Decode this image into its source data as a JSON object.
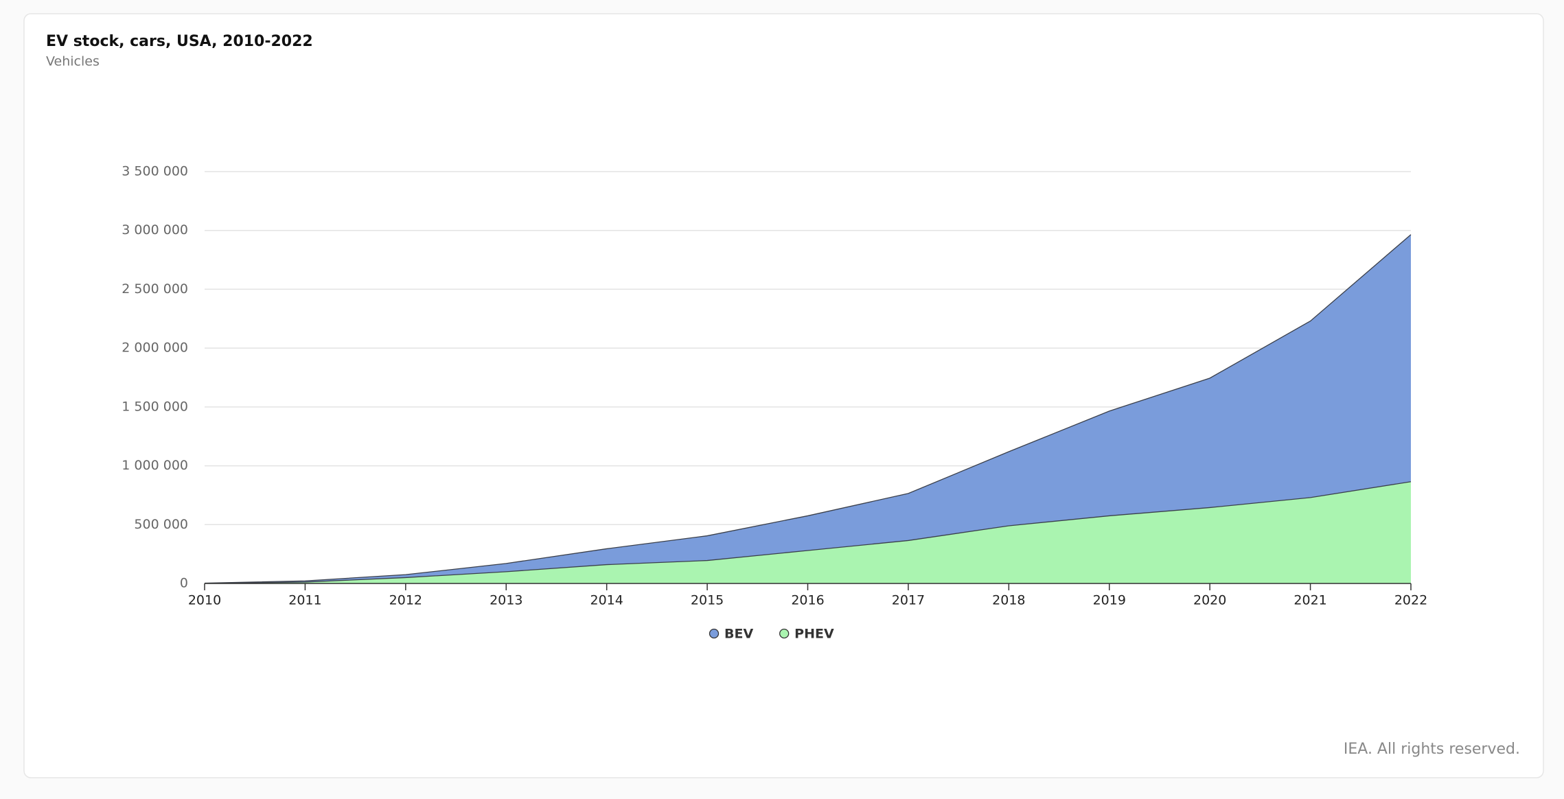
{
  "chart_data": {
    "type": "stacked-area",
    "title": "EV stock, cars, USA, 2010-2022",
    "subtitle": "Vehicles",
    "footer": "IEA. All rights reserved.",
    "x": [
      2010,
      2011,
      2012,
      2013,
      2014,
      2015,
      2016,
      2017,
      2018,
      2019,
      2020,
      2021,
      2022
    ],
    "xlim": [
      2010,
      2022
    ],
    "xticks": [
      2010,
      2011,
      2012,
      2013,
      2014,
      2015,
      2016,
      2017,
      2018,
      2019,
      2020,
      2021,
      2022
    ],
    "series": [
      {
        "name": "BEV",
        "color": "#7a9cdb",
        "values": [
          2000,
          10000,
          25000,
          70000,
          135000,
          210000,
          295000,
          400000,
          630000,
          890000,
          1100000,
          1500000,
          2100000
        ]
      },
      {
        "name": "PHEV",
        "color": "#aaf4b0",
        "values": [
          1000,
          12000,
          50000,
          100000,
          160000,
          195000,
          280000,
          365000,
          490000,
          575000,
          645000,
          730000,
          865000
        ]
      }
    ],
    "ylim": [
      0,
      3500000
    ],
    "yticks": [
      0,
      {
        "value": 500000,
        "label": "500 000"
      },
      {
        "value": 1000000,
        "label": "1 000 000"
      },
      {
        "value": 1500000,
        "label": "1 500 000"
      },
      {
        "value": 2000000,
        "label": "2 000 000"
      },
      {
        "value": 2500000,
        "label": "2 500 000"
      },
      {
        "value": 3000000,
        "label": "3 000 000"
      },
      {
        "value": 3500000,
        "label": "3 500 000"
      }
    ],
    "grid": true
  }
}
